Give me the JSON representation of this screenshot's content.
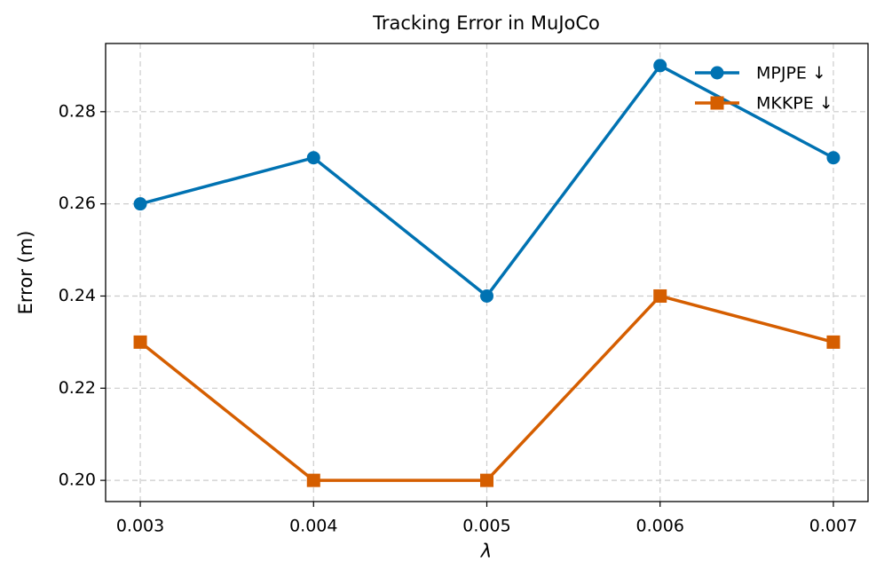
{
  "chart_data": {
    "type": "line",
    "title": "Tracking Error in MuJoCo",
    "xlabel": "λ",
    "ylabel": "Error (m)",
    "x": [
      0.003,
      0.004,
      0.005,
      0.006,
      0.007
    ],
    "series": [
      {
        "name": "MPJPE ↓",
        "color": "#0072b2",
        "marker": "circle",
        "values": [
          0.26,
          0.27,
          0.24,
          0.29,
          0.27
        ]
      },
      {
        "name": "MKKPE ↓",
        "color": "#d55e00",
        "marker": "square",
        "values": [
          0.23,
          0.2,
          0.2,
          0.24,
          0.23
        ]
      }
    ],
    "xlim": [
      0.0028,
      0.0072
    ],
    "xticks": [
      0.003,
      0.004,
      0.005,
      0.006,
      0.007
    ],
    "ylim": [
      0.1954,
      0.2948
    ],
    "yticks": [
      {
        "value": 0.2,
        "label": "0.20"
      },
      0.22,
      0.24,
      0.26,
      0.28
    ],
    "grid": true,
    "legend": "upper right"
  }
}
